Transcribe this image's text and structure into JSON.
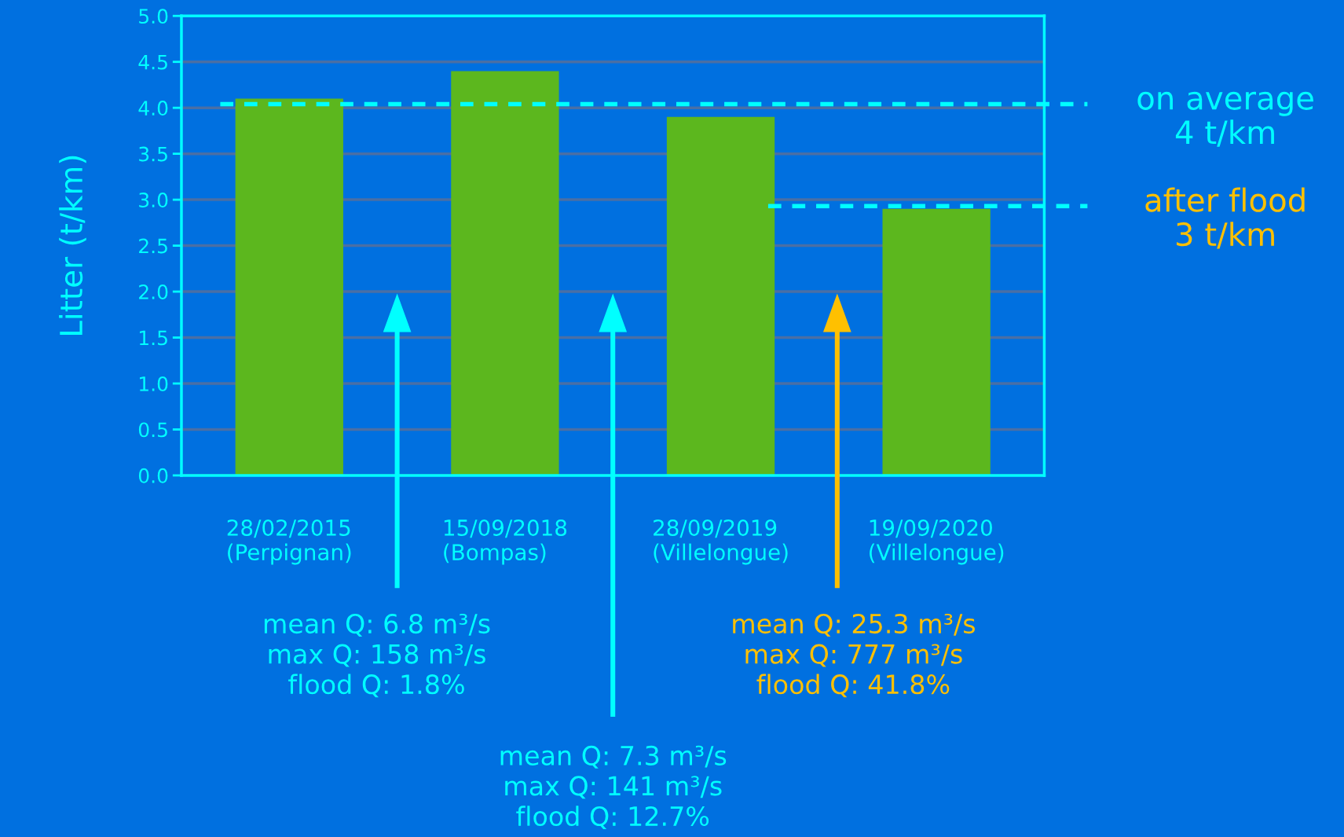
{
  "chart_data": {
    "type": "bar",
    "ylabel": "Litter (t/km)",
    "categories": [
      "28/02/2015\n(Perpignan)",
      "15/09/2018\n(Bompas)",
      "28/09/2019\n(Villelongue)",
      "19/09/2020\n(Villelongue)"
    ],
    "values": [
      4.1,
      4.4,
      3.9,
      2.9
    ],
    "color": "#5cb71e",
    "ylim": [
      0,
      5
    ],
    "yticks": [
      {
        "value": 0,
        "label": "0.0"
      },
      {
        "value": 0.5,
        "label": "0.5"
      },
      {
        "value": 1,
        "label": "1.0"
      },
      {
        "value": 1.5,
        "label": "1.5"
      },
      {
        "value": 2,
        "label": "2.0"
      },
      {
        "value": 2.5,
        "label": "2.5"
      },
      {
        "value": 3,
        "label": "3.0"
      },
      {
        "value": 3.5,
        "label": "3.5"
      },
      {
        "value": 4,
        "label": "4.0"
      },
      {
        "value": 4.5,
        "label": "4.5"
      },
      {
        "value": 5,
        "label": "5.0"
      }
    ],
    "grid": "y",
    "ref_lines": [
      {
        "axis": "y",
        "value": 4.04,
        "label": "on average\n4 t/km",
        "color": "#00ffff",
        "line_style": "dashed"
      },
      {
        "axis": "y",
        "value": 2.93,
        "label": "after flood\n3 t/km",
        "color": "#00ffff",
        "line_style": "dashed"
      }
    ],
    "annotations": [
      "mean Q: 6.8 m³/s\nmax Q: 158 m³/s\nflood Q: 1.8%",
      "mean Q: 7.3 m³/s\nmax Q: 141 m³/s\nflood Q: 12.7%",
      "mean Q: 25.3 m³/s\nmax Q: 777 m³/s\nflood Q: 41.8%"
    ]
  }
}
